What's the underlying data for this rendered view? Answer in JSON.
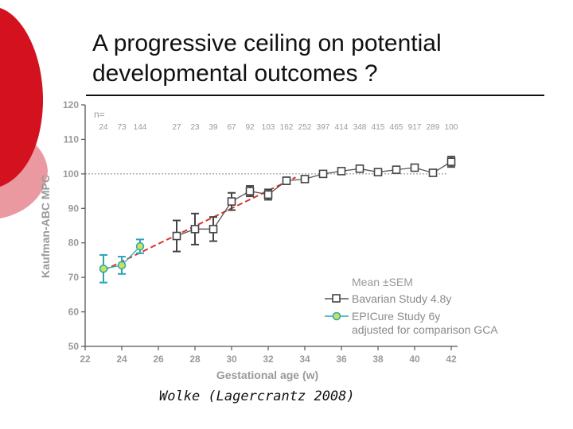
{
  "slide": {
    "title": "A progressive ceiling on potential developmental outcomes ?",
    "credit": "Wolke (Lagercrantz 2008)",
    "accent_red": "#d4111f",
    "accent_pink": "#e9999f"
  },
  "chart_data": {
    "type": "line",
    "title": "",
    "xlabel": "Gestational age (w)",
    "ylabel": "Kaufman-ABC MPC",
    "xlim": [
      22,
      42
    ],
    "ylim": [
      50,
      120
    ],
    "xticks": [
      22,
      24,
      26,
      28,
      30,
      32,
      34,
      36,
      38,
      40,
      42
    ],
    "yticks": [
      50,
      60,
      70,
      80,
      90,
      100,
      110,
      120
    ],
    "reference_line": 100,
    "n_label": "n=",
    "n_counts": [
      {
        "x": 23,
        "n": "24"
      },
      {
        "x": 24,
        "n": "73"
      },
      {
        "x": 25,
        "n": "144"
      },
      {
        "x": 27,
        "n": "27"
      },
      {
        "x": 28,
        "n": "23"
      },
      {
        "x": 29,
        "n": "39"
      },
      {
        "x": 30,
        "n": "67"
      },
      {
        "x": 31,
        "n": "92"
      },
      {
        "x": 32,
        "n": "103"
      },
      {
        "x": 33,
        "n": "162"
      },
      {
        "x": 34,
        "n": "252"
      },
      {
        "x": 35,
        "n": "397"
      },
      {
        "x": 36,
        "n": "414"
      },
      {
        "x": 37,
        "n": "348"
      },
      {
        "x": 38,
        "n": "415"
      },
      {
        "x": 39,
        "n": "465"
      },
      {
        "x": 40,
        "n": "917"
      },
      {
        "x": 41,
        "n": "289"
      },
      {
        "x": 42,
        "n": "100"
      }
    ],
    "series": [
      {
        "name": "Bavarian Study 4.8y",
        "color": "#555555",
        "marker": "square",
        "points": [
          {
            "x": 27,
            "y": 82,
            "err": 4.5
          },
          {
            "x": 28,
            "y": 84,
            "err": 4.5
          },
          {
            "x": 29,
            "y": 84,
            "err": 3.5
          },
          {
            "x": 30,
            "y": 92,
            "err": 2.5
          },
          {
            "x": 31,
            "y": 95,
            "err": 1.5
          },
          {
            "x": 32,
            "y": 94,
            "err": 1.5
          },
          {
            "x": 33,
            "y": 98,
            "err": 1
          },
          {
            "x": 34,
            "y": 98.5,
            "err": 0.8
          },
          {
            "x": 35,
            "y": 100,
            "err": 0.5
          },
          {
            "x": 36,
            "y": 100.8,
            "err": 0.5
          },
          {
            "x": 37,
            "y": 101.5,
            "err": 0.5
          },
          {
            "x": 38,
            "y": 100.5,
            "err": 0.5
          },
          {
            "x": 39,
            "y": 101.2,
            "err": 0.5
          },
          {
            "x": 40,
            "y": 101.8,
            "err": 0.5
          },
          {
            "x": 41,
            "y": 100.3,
            "err": 0.5
          },
          {
            "x": 42,
            "y": 103.5,
            "err": 1.5
          }
        ]
      },
      {
        "name": "EPICure Study 6y",
        "color": "#2aa5b5",
        "marker": "circle",
        "points": [
          {
            "x": 23,
            "y": 72.5,
            "err": 4
          },
          {
            "x": 24,
            "y": 73.5,
            "err": 2.5
          },
          {
            "x": 25,
            "y": 79,
            "err": 2
          }
        ]
      }
    ],
    "fit_line": {
      "color": "#d9342a",
      "from": [
        23,
        72
      ],
      "to": [
        33.5,
        99
      ]
    },
    "legend": {
      "position": "bottom-right",
      "heading": "Mean ±SEM",
      "note": "adjusted for comparison GCA"
    }
  }
}
